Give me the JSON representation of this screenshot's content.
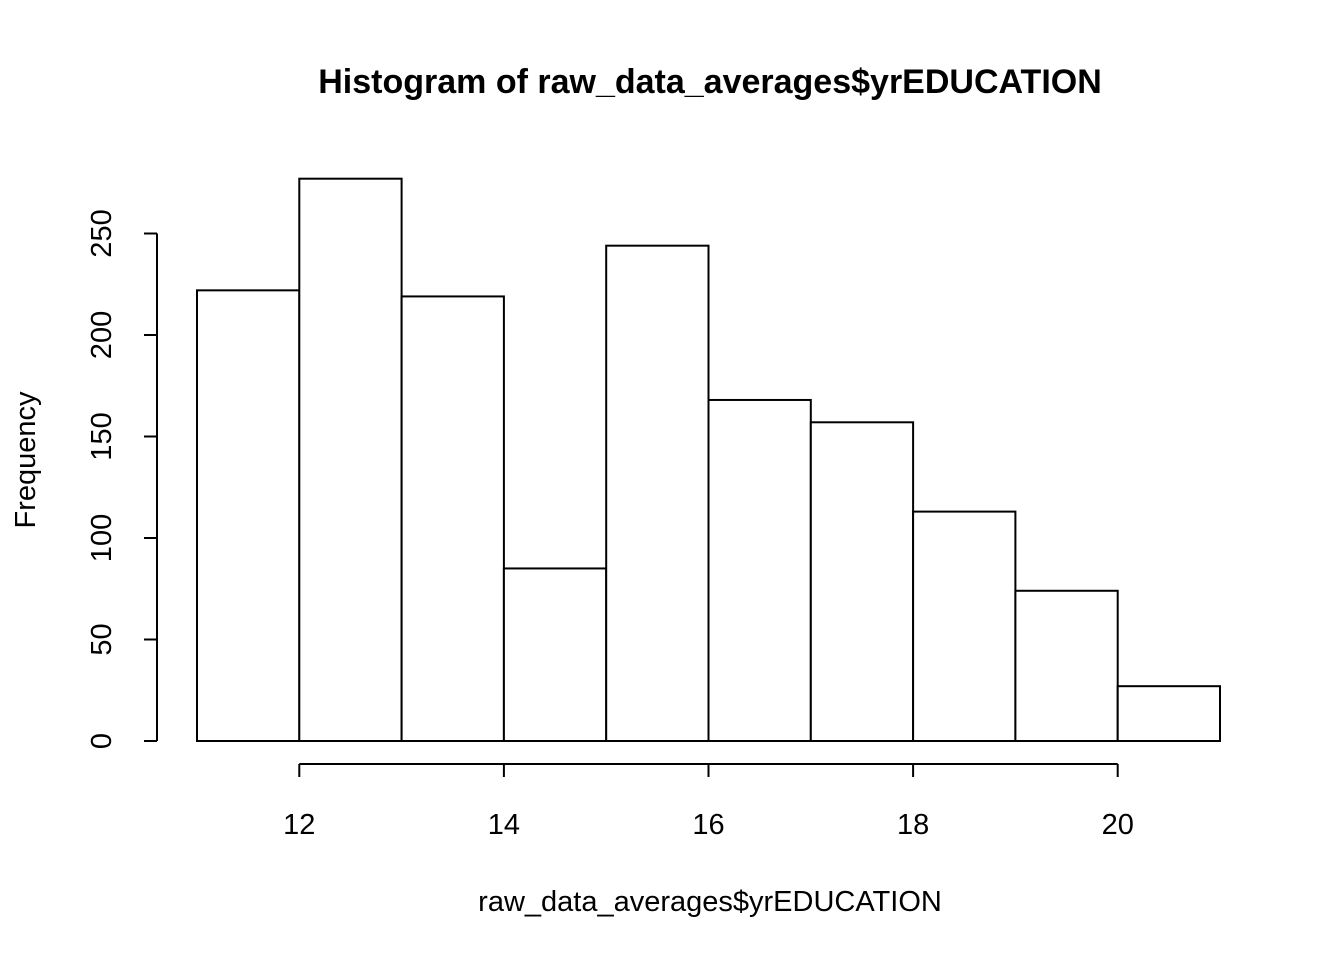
{
  "chart_data": {
    "type": "bar",
    "title": "Histogram of raw_data_averages$yrEDUCATION",
    "xlabel": "raw_data_averages$yrEDUCATION",
    "ylabel": "Frequency",
    "bins": [
      {
        "x0": 11,
        "x1": 12,
        "count": 222
      },
      {
        "x0": 12,
        "x1": 13,
        "count": 277
      },
      {
        "x0": 13,
        "x1": 14,
        "count": 219
      },
      {
        "x0": 14,
        "x1": 15,
        "count": 85
      },
      {
        "x0": 15,
        "x1": 16,
        "count": 244
      },
      {
        "x0": 16,
        "x1": 17,
        "count": 168
      },
      {
        "x0": 17,
        "x1": 18,
        "count": 157
      },
      {
        "x0": 18,
        "x1": 19,
        "count": 113
      },
      {
        "x0": 19,
        "x1": 20,
        "count": 74
      },
      {
        "x0": 20,
        "x1": 21,
        "count": 27
      }
    ],
    "xlim": [
      11,
      21
    ],
    "ylim": [
      0,
      277
    ],
    "xticks": [
      12,
      14,
      16,
      18,
      20
    ],
    "yticks": [
      0,
      50,
      100,
      150,
      200,
      250
    ],
    "grid": false,
    "legend": "none"
  }
}
